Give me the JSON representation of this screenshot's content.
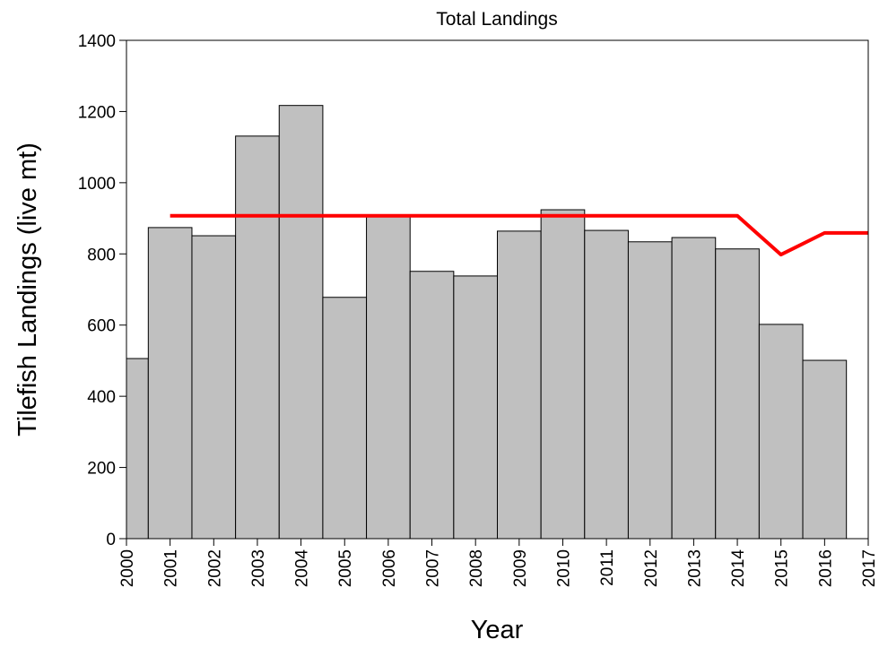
{
  "chart_data": {
    "type": "bar",
    "title": "Total Landings",
    "x_label": "Year",
    "y_label": "Tilefish Landings (live mt)",
    "x": [
      2000,
      2001,
      2002,
      2003,
      2004,
      2005,
      2006,
      2007,
      2008,
      2009,
      2010,
      2011,
      2012,
      2013,
      2014,
      2015,
      2016,
      2017
    ],
    "series": [
      {
        "type": "bar",
        "color": "#c0c0c0",
        "values": [
          506,
          874,
          851,
          1131,
          1217,
          678,
          909,
          751,
          738,
          864,
          924,
          866,
          834,
          846,
          814,
          602,
          501,
          null
        ]
      },
      {
        "type": "line",
        "color": "#ff0000",
        "values": [
          null,
          907,
          907,
          907,
          907,
          907,
          907,
          907,
          907,
          907,
          907,
          907,
          907,
          907,
          907,
          798,
          859,
          859
        ]
      }
    ],
    "xlim": [
      2000,
      2017
    ],
    "xticks": [
      2000,
      2001,
      2002,
      2003,
      2004,
      2005,
      2006,
      2007,
      2008,
      2009,
      2010,
      2011,
      2012,
      2013,
      2014,
      2015,
      2016,
      2017
    ],
    "ylim": [
      0,
      1400
    ],
    "yticks": [
      0,
      200,
      400,
      600,
      800,
      1000,
      1200,
      1400
    ]
  }
}
